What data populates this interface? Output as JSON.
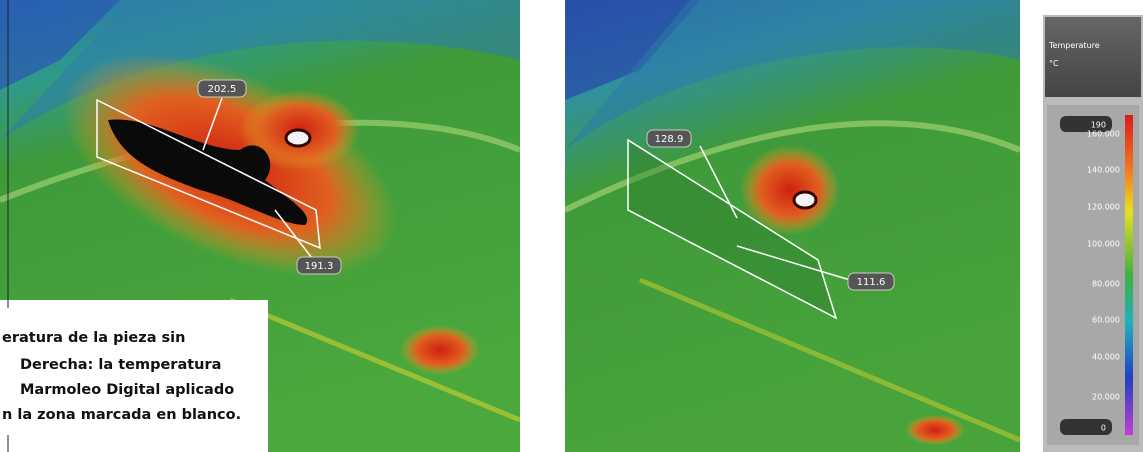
{
  "left_image": {
    "labels": [
      "202.5",
      "191.3"
    ]
  },
  "right_image": {
    "labels": [
      "128.9",
      "111.6"
    ]
  },
  "caption": {
    "lines": [
      "eratura de la pieza sin",
      "Derecha: la temperatura",
      "Marmoleo Digital aplicado",
      "n la zona marcada en blanco."
    ]
  },
  "legend": {
    "title": "Temperature",
    "unit": "°C",
    "max": "190",
    "ticks": [
      "160.000",
      "140.000",
      "120.000",
      "100.000",
      "80.000",
      "60.000",
      "40.000",
      "20.000"
    ],
    "min": "0"
  }
}
